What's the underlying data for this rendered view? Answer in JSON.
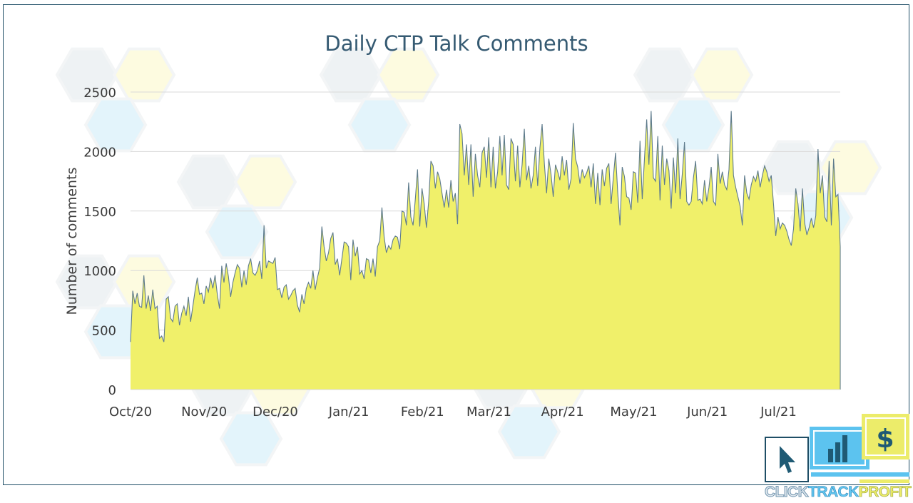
{
  "chart_data": {
    "type": "area",
    "title": "Daily CTP Talk Comments",
    "ylabel": "Number of comments",
    "xlabel": "",
    "ylim": [
      0,
      2500
    ],
    "yticks": [
      0,
      500,
      1000,
      1500,
      2000,
      2500
    ],
    "x_start": "2020-10-01",
    "x_end": "2021-07-27",
    "xtick_labels": [
      "Oct/20",
      "Nov/20",
      "Dec/20",
      "Jan/21",
      "Feb/21",
      "Mar/21",
      "Apr/21",
      "May/21",
      "Jun/21",
      "Jul/21"
    ],
    "grid": true,
    "legend": "none",
    "fill_color": "#f0f06a",
    "line_color": "#5e7b8c",
    "series": [
      {
        "values": [
          400,
          830,
          720,
          810,
          700,
          690,
          960,
          680,
          790,
          660,
          840,
          680,
          700,
          430,
          450,
          400,
          760,
          780,
          600,
          570,
          700,
          720,
          540,
          640,
          700,
          620,
          780,
          570,
          700,
          830,
          940,
          800,
          810,
          720,
          870,
          820,
          940,
          850,
          960,
          800,
          680,
          1040,
          900,
          1060,
          950,
          780,
          900,
          980,
          1050,
          1020,
          860,
          1000,
          880,
          1040,
          1100,
          980,
          960,
          1000,
          1080,
          930,
          1380,
          1020,
          1080,
          1070,
          1060,
          1110,
          840,
          850,
          770,
          860,
          880,
          760,
          790,
          830,
          850,
          710,
          650,
          800,
          720,
          850,
          900,
          850,
          1000,
          840,
          940,
          1020,
          1370,
          1200,
          1080,
          1150,
          1270,
          1320,
          1050,
          1100,
          960,
          1100,
          1240,
          1230,
          1200,
          920,
          1260,
          1120,
          1200,
          970,
          1000,
          930,
          1100,
          1090,
          980,
          1100,
          950,
          1200,
          1250,
          1530,
          1280,
          1150,
          1210,
          1180,
          1260,
          1290,
          1280,
          1180,
          1500,
          1490,
          1380,
          1740,
          1450,
          1380,
          1600,
          1850,
          1370,
          1690,
          1560,
          1360,
          1580,
          1920,
          1880,
          1690,
          1830,
          1770,
          1650,
          1530,
          1680,
          1530,
          1760,
          1580,
          1650,
          1390,
          2230,
          2150,
          1800,
          2060,
          1720,
          2060,
          1620,
          1980,
          1800,
          1700,
          1990,
          2040,
          1780,
          2120,
          1700,
          2040,
          1690,
          1830,
          2130,
          1800,
          2140,
          1720,
          1680,
          2110,
          2060,
          1750,
          2050,
          1700,
          1890,
          2190,
          1760,
          1880,
          1690,
          1800,
          2040,
          1710,
          2030,
          2230,
          1900,
          1650,
          1940,
          1810,
          1620,
          1890,
          1830,
          1760,
          1960,
          1800,
          1930,
          1680,
          1770,
          2240,
          1940,
          1870,
          1730,
          1850,
          1780,
          1820,
          1880,
          1700,
          1900,
          1560,
          1820,
          1550,
          1850,
          1710,
          1860,
          1900,
          1560,
          1780,
          1990,
          1650,
          1380,
          1870,
          1790,
          1620,
          1610,
          1510,
          1830,
          1820,
          1570,
          2090,
          1600,
          1940,
          2270,
          1890,
          2340,
          1780,
          1750,
          2130,
          1590,
          2050,
          1720,
          1940,
          1840,
          1520,
          1950,
          1650,
          2110,
          1600,
          1810,
          2080,
          1580,
          1550,
          1580,
          1780,
          1920,
          1590,
          1600,
          1560,
          1760,
          1580,
          1700,
          1870,
          1580,
          1550,
          1980,
          1730,
          1830,
          1720,
          1680,
          1850,
          2340,
          1800,
          1700,
          1620,
          1540,
          1380,
          1800,
          1650,
          1600,
          1720,
          1790,
          1750,
          1840,
          1700,
          1800,
          1880,
          1830,
          1750,
          1800,
          1560,
          1290,
          1450,
          1350,
          1400,
          1380,
          1330,
          1260,
          1210,
          1350,
          1690,
          1560,
          1330,
          1690,
          1400,
          1300,
          1360,
          1440,
          1360,
          1460,
          2020,
          1650,
          1800,
          1450,
          1410,
          1920,
          1380,
          1940,
          1620,
          1640,
          1200
        ]
      }
    ]
  },
  "logo": {
    "word_click": "CLICK",
    "word_track": "TRACK",
    "word_profit": "PROFIT",
    "dollar": "$"
  }
}
